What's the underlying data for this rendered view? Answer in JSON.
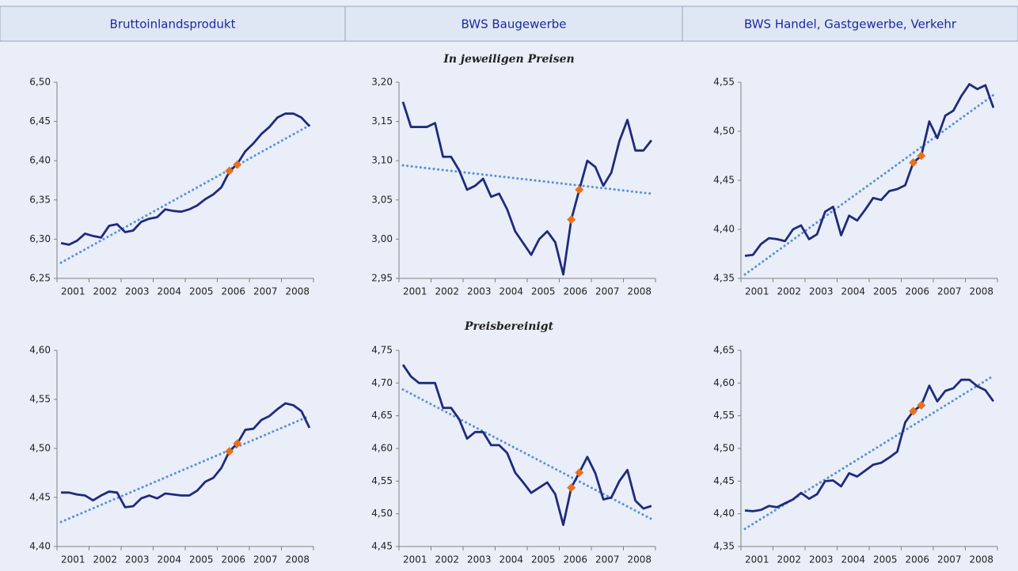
{
  "columns": [
    "Bruttoinlandsprodukt",
    "BWS Baugewerbe",
    "BWS Handel, Gastgewerbe, Verkehr"
  ],
  "sections": [
    "In jeweiligen Preisen",
    "Preisbereinigt"
  ],
  "chart_data": [
    {
      "type": "line",
      "categories": [
        "2001",
        null,
        null,
        null,
        "2002",
        null,
        null,
        null,
        "2003",
        null,
        null,
        null,
        "2004",
        null,
        null,
        null,
        "2005",
        null,
        null,
        null,
        "2006",
        null,
        null,
        null,
        "2007",
        null,
        null,
        null,
        "2008",
        null,
        null,
        null
      ],
      "series": [
        {
          "color": "#1f2a7c",
          "values": [
            6.295,
            6.293,
            6.298,
            6.307,
            6.304,
            6.302,
            6.317,
            6.319,
            6.309,
            6.311,
            6.322,
            6.326,
            6.328,
            6.338,
            6.336,
            6.335,
            6.338,
            6.343,
            6.351,
            6.357,
            6.366,
            6.386,
            6.396,
            6.412,
            6.422,
            6.434,
            6.443,
            6.455,
            6.46,
            6.46,
            6.455,
            6.444
          ]
        },
        {
          "color": "#e8721c",
          "marker": "diamond",
          "values": [
            null,
            null,
            null,
            null,
            null,
            null,
            null,
            null,
            null,
            null,
            null,
            null,
            null,
            null,
            null,
            null,
            null,
            null,
            null,
            null,
            null,
            6.387,
            6.395,
            null,
            null,
            null,
            null,
            null,
            null,
            null,
            null,
            null
          ]
        }
      ],
      "trend": {
        "color": "#5b8fd6",
        "values": [
          6.27,
          6.445
        ]
      },
      "ylim": [
        6.25,
        6.5
      ],
      "yticks": [
        {
          "value": 6.25,
          "label": "6,25"
        },
        {
          "value": 6.3,
          "label": "6,30"
        },
        {
          "value": 6.35,
          "label": "6,35"
        },
        {
          "value": 6.4,
          "label": "6,40"
        },
        {
          "value": 6.45,
          "label": "6,45"
        },
        {
          "value": 6.5,
          "label": "6,50"
        }
      ]
    },
    {
      "type": "line",
      "categories": [
        "2001",
        null,
        null,
        null,
        "2002",
        null,
        null,
        null,
        "2003",
        null,
        null,
        null,
        "2004",
        null,
        null,
        null,
        "2005",
        null,
        null,
        null,
        "2006",
        null,
        null,
        null,
        "2007",
        null,
        null,
        null,
        "2008",
        null,
        null,
        null
      ],
      "series": [
        {
          "color": "#1f2a7c",
          "values": [
            3.175,
            3.143,
            3.143,
            3.143,
            3.148,
            3.105,
            3.105,
            3.088,
            3.063,
            3.068,
            3.077,
            3.054,
            3.058,
            3.038,
            3.01,
            2.995,
            2.98,
            3.0,
            3.01,
            2.996,
            2.955,
            3.025,
            3.063,
            3.1,
            3.092,
            3.068,
            3.085,
            3.125,
            3.152,
            3.113,
            3.113,
            3.126
          ]
        },
        {
          "color": "#e8721c",
          "marker": "diamond",
          "values": [
            null,
            null,
            null,
            null,
            null,
            null,
            null,
            null,
            null,
            null,
            null,
            null,
            null,
            null,
            null,
            null,
            null,
            null,
            null,
            null,
            null,
            3.025,
            3.063,
            null,
            null,
            null,
            null,
            null,
            null,
            null,
            null,
            null
          ]
        }
      ],
      "trend": {
        "color": "#5b8fd6",
        "values": [
          3.094,
          3.058
        ]
      },
      "ylim": [
        2.95,
        3.2
      ],
      "yticks": [
        {
          "value": 2.95,
          "label": "2,95"
        },
        {
          "value": 3.0,
          "label": "3,00"
        },
        {
          "value": 3.05,
          "label": "3,05"
        },
        {
          "value": 3.1,
          "label": "3,10"
        },
        {
          "value": 3.15,
          "label": "3,15"
        },
        {
          "value": 3.2,
          "label": "3,20"
        }
      ]
    },
    {
      "type": "line",
      "categories": [
        "2001",
        null,
        null,
        null,
        "2002",
        null,
        null,
        null,
        "2003",
        null,
        null,
        null,
        "2004",
        null,
        null,
        null,
        "2005",
        null,
        null,
        null,
        "2006",
        null,
        null,
        null,
        "2007",
        null,
        null,
        null,
        "2008",
        null,
        null,
        null
      ],
      "series": [
        {
          "color": "#1f2a7c",
          "values": [
            4.373,
            4.374,
            4.385,
            4.391,
            4.39,
            4.388,
            4.4,
            4.404,
            4.39,
            4.395,
            4.418,
            4.423,
            4.394,
            4.414,
            4.409,
            4.42,
            4.432,
            4.43,
            4.439,
            4.441,
            4.445,
            4.468,
            4.475,
            4.51,
            4.493,
            4.516,
            4.521,
            4.536,
            4.548,
            4.543,
            4.547,
            4.524
          ]
        },
        {
          "color": "#e8721c",
          "marker": "diamond",
          "values": [
            null,
            null,
            null,
            null,
            null,
            null,
            null,
            null,
            null,
            null,
            null,
            null,
            null,
            null,
            null,
            null,
            null,
            null,
            null,
            null,
            null,
            4.468,
            4.475,
            null,
            null,
            null,
            null,
            null,
            null,
            null,
            null,
            null
          ]
        }
      ],
      "trend": {
        "color": "#5b8fd6",
        "values": [
          4.354,
          4.537
        ]
      },
      "ylim": [
        4.35,
        4.55
      ],
      "yticks": [
        {
          "value": 4.35,
          "label": "4,35"
        },
        {
          "value": 4.4,
          "label": "4,40"
        },
        {
          "value": 4.45,
          "label": "4,45"
        },
        {
          "value": 4.5,
          "label": "4,50"
        },
        {
          "value": 4.55,
          "label": "4,55"
        }
      ]
    },
    {
      "type": "line",
      "categories": [
        "2001",
        null,
        null,
        null,
        "2002",
        null,
        null,
        null,
        "2003",
        null,
        null,
        null,
        "2004",
        null,
        null,
        null,
        "2005",
        null,
        null,
        null,
        "2006",
        null,
        null,
        null,
        "2007",
        null,
        null,
        null,
        "2008",
        null,
        null,
        null
      ],
      "series": [
        {
          "color": "#1f2a7c",
          "values": [
            4.455,
            4.455,
            4.453,
            4.452,
            4.447,
            4.452,
            4.456,
            4.455,
            4.44,
            4.441,
            4.449,
            4.452,
            4.449,
            4.454,
            4.453,
            4.452,
            4.452,
            4.457,
            4.466,
            4.47,
            4.48,
            4.497,
            4.505,
            4.519,
            4.52,
            4.529,
            4.533,
            4.54,
            4.546,
            4.544,
            4.538,
            4.521
          ]
        },
        {
          "color": "#e8721c",
          "marker": "diamond",
          "values": [
            null,
            null,
            null,
            null,
            null,
            null,
            null,
            null,
            null,
            null,
            null,
            null,
            null,
            null,
            null,
            null,
            null,
            null,
            null,
            null,
            null,
            4.497,
            4.505,
            null,
            null,
            null,
            null,
            null,
            null,
            null,
            null,
            null
          ]
        }
      ],
      "trend": {
        "color": "#5b8fd6",
        "values": [
          4.425,
          4.533
        ]
      },
      "ylim": [
        4.4,
        4.6
      ],
      "yticks": [
        {
          "value": 4.4,
          "label": "4,40"
        },
        {
          "value": 4.45,
          "label": "4,45"
        },
        {
          "value": 4.5,
          "label": "4,50"
        },
        {
          "value": 4.55,
          "label": "4,55"
        },
        {
          "value": 4.6,
          "label": "4,60"
        }
      ]
    },
    {
      "type": "line",
      "categories": [
        "2001",
        null,
        null,
        null,
        "2002",
        null,
        null,
        null,
        "2003",
        null,
        null,
        null,
        "2004",
        null,
        null,
        null,
        "2005",
        null,
        null,
        null,
        "2006",
        null,
        null,
        null,
        "2007",
        null,
        null,
        null,
        "2008",
        null,
        null,
        null
      ],
      "series": [
        {
          "color": "#1f2a7c",
          "values": [
            4.728,
            4.71,
            4.7,
            4.7,
            4.7,
            4.662,
            4.662,
            4.645,
            4.615,
            4.625,
            4.625,
            4.605,
            4.605,
            4.593,
            4.563,
            4.548,
            4.532,
            4.54,
            4.548,
            4.53,
            4.483,
            4.54,
            4.563,
            4.587,
            4.562,
            4.522,
            4.525,
            4.55,
            4.567,
            4.52,
            4.508,
            4.512
          ]
        },
        {
          "color": "#e8721c",
          "marker": "diamond",
          "values": [
            null,
            null,
            null,
            null,
            null,
            null,
            null,
            null,
            null,
            null,
            null,
            null,
            null,
            null,
            null,
            null,
            null,
            null,
            null,
            null,
            null,
            4.54,
            4.563,
            null,
            null,
            null,
            null,
            null,
            null,
            null,
            null,
            null
          ]
        }
      ],
      "trend": {
        "color": "#5b8fd6",
        "values": [
          4.69,
          4.492
        ]
      },
      "ylim": [
        4.45,
        4.75
      ],
      "yticks": [
        {
          "value": 4.45,
          "label": "4,45"
        },
        {
          "value": 4.5,
          "label": "4,50"
        },
        {
          "value": 4.55,
          "label": "4,55"
        },
        {
          "value": 4.6,
          "label": "4,60"
        },
        {
          "value": 4.65,
          "label": "4,65"
        },
        {
          "value": 4.7,
          "label": "4,70"
        },
        {
          "value": 4.75,
          "label": "4,75"
        }
      ]
    },
    {
      "type": "line",
      "categories": [
        "2001",
        null,
        null,
        null,
        "2002",
        null,
        null,
        null,
        "2003",
        null,
        null,
        null,
        "2004",
        null,
        null,
        null,
        "2005",
        null,
        null,
        null,
        "2006",
        null,
        null,
        null,
        "2007",
        null,
        null,
        null,
        "2008",
        null,
        null,
        null
      ],
      "series": [
        {
          "color": "#1f2a7c",
          "values": [
            4.405,
            4.404,
            4.406,
            4.412,
            4.41,
            4.416,
            4.422,
            4.432,
            4.423,
            4.43,
            4.45,
            4.451,
            4.442,
            4.462,
            4.457,
            4.466,
            4.475,
            4.478,
            4.486,
            4.495,
            4.54,
            4.557,
            4.566,
            4.596,
            4.572,
            4.588,
            4.592,
            4.605,
            4.605,
            4.595,
            4.589,
            4.572
          ]
        },
        {
          "color": "#e8721c",
          "marker": "diamond",
          "values": [
            null,
            null,
            null,
            null,
            null,
            null,
            null,
            null,
            null,
            null,
            null,
            null,
            null,
            null,
            null,
            null,
            null,
            null,
            null,
            null,
            null,
            4.557,
            4.566,
            null,
            null,
            null,
            null,
            null,
            null,
            null,
            null,
            null
          ]
        }
      ],
      "trend": {
        "color": "#5b8fd6",
        "values": [
          4.377,
          4.611
        ]
      },
      "ylim": [
        4.35,
        4.65
      ],
      "yticks": [
        {
          "value": 4.35,
          "label": "4,35"
        },
        {
          "value": 4.4,
          "label": "4,40"
        },
        {
          "value": 4.45,
          "label": "4,45"
        },
        {
          "value": 4.5,
          "label": "4,50"
        },
        {
          "value": 4.55,
          "label": "4,55"
        },
        {
          "value": 4.6,
          "label": "4,60"
        },
        {
          "value": 4.65,
          "label": "4,65"
        }
      ]
    }
  ]
}
